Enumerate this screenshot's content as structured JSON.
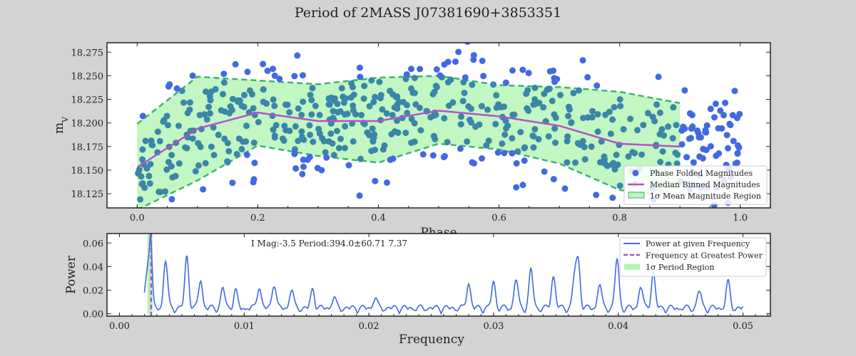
{
  "figure_title": "Period of 2MASS J07381690+3853351",
  "colors": {
    "background": "#d3d3d3",
    "points": "#4169e1",
    "points_overlap": "#3a86a8",
    "median_line": "#b452c8",
    "band_fill": "#90ee90",
    "band_edge": "#3cb371",
    "power_line": "#4169e1",
    "peak_line": "#b452c8"
  },
  "chart_data": [
    {
      "type": "scatter",
      "title": "Period of 2MASS J07381690+3853351",
      "xlabel": "Phase",
      "ylabel": "m_V",
      "xlim": [
        -0.05,
        1.05
      ],
      "ylim": [
        18.11,
        18.285
      ],
      "xticks": [
        "0.0",
        "0.2",
        "0.4",
        "0.6",
        "0.8",
        "1.0"
      ],
      "yticks": [
        "18.125",
        "18.150",
        "18.175",
        "18.200",
        "18.225",
        "18.250",
        "18.275"
      ],
      "legend_position": "lower-right",
      "series": [
        {
          "name": "Phase Folded Magnitudes",
          "kind": "scatter",
          "n_points": 560,
          "x_range": [
            0.0,
            1.0
          ],
          "y_range": [
            18.11,
            18.285
          ],
          "centered_on_median": true
        },
        {
          "name": "Median Binned Magnitudes",
          "kind": "line",
          "x": [
            0.0,
            0.1,
            0.2,
            0.3,
            0.4,
            0.5,
            0.6,
            0.7,
            0.8,
            0.9
          ],
          "y": [
            18.153,
            18.194,
            18.211,
            18.202,
            18.202,
            18.213,
            18.207,
            18.197,
            18.178,
            18.175
          ]
        },
        {
          "name": "1σ Mean Magnitude Region",
          "kind": "band",
          "x": [
            0.0,
            0.1,
            0.2,
            0.3,
            0.4,
            0.5,
            0.6,
            0.7,
            0.8,
            0.9
          ],
          "upper": [
            18.199,
            18.249,
            18.245,
            18.241,
            18.248,
            18.25,
            18.24,
            18.238,
            18.233,
            18.221
          ],
          "lower": [
            18.108,
            18.139,
            18.176,
            18.165,
            18.158,
            18.178,
            18.172,
            18.157,
            18.129,
            18.121
          ]
        }
      ]
    },
    {
      "type": "line",
      "xlabel": "Frequency",
      "ylabel": "Power",
      "xlim": [
        -0.001,
        0.0522
      ],
      "ylim": [
        -0.002,
        0.068
      ],
      "xticks": [
        "0.00",
        "0.01",
        "0.02",
        "0.03",
        "0.04",
        "0.05"
      ],
      "yticks": [
        "0.00",
        "0.02",
        "0.04",
        "0.06"
      ],
      "annotation": "I Mag:-3.5 Period:394.0±60.71 7.37",
      "legend_position": "upper-right",
      "peak_frequency": 0.00254,
      "period_region": [
        0.00225,
        0.00265
      ],
      "series": [
        {
          "name": "Power at given Frequency",
          "kind": "line",
          "x_range": [
            0.002,
            0.05
          ],
          "peaks": [
            {
              "f": 0.00248,
              "p": 0.064
            },
            {
              "f": 0.0037,
              "p": 0.041
            },
            {
              "f": 0.0054,
              "p": 0.044
            },
            {
              "f": 0.0065,
              "p": 0.024
            },
            {
              "f": 0.0083,
              "p": 0.017
            },
            {
              "f": 0.0093,
              "p": 0.015
            },
            {
              "f": 0.0112,
              "p": 0.019
            },
            {
              "f": 0.0124,
              "p": 0.022
            },
            {
              "f": 0.0138,
              "p": 0.016
            },
            {
              "f": 0.0155,
              "p": 0.016
            },
            {
              "f": 0.0172,
              "p": 0.009
            },
            {
              "f": 0.0205,
              "p": 0.009
            },
            {
              "f": 0.028,
              "p": 0.022
            },
            {
              "f": 0.03,
              "p": 0.022
            },
            {
              "f": 0.0318,
              "p": 0.025
            },
            {
              "f": 0.033,
              "p": 0.033
            },
            {
              "f": 0.0348,
              "p": 0.028
            },
            {
              "f": 0.0365,
              "p": 0.027
            },
            {
              "f": 0.0368,
              "p": 0.037
            },
            {
              "f": 0.0385,
              "p": 0.021
            },
            {
              "f": 0.0399,
              "p": 0.042
            },
            {
              "f": 0.0418,
              "p": 0.019
            },
            {
              "f": 0.0428,
              "p": 0.03
            },
            {
              "f": 0.0465,
              "p": 0.015
            },
            {
              "f": 0.0488,
              "p": 0.022
            }
          ]
        },
        {
          "name": "Frequency at Greatest Power",
          "kind": "vline",
          "x": 0.00254
        },
        {
          "name": "1σ Period Region",
          "kind": "band",
          "x": [
            0.00225,
            0.00265
          ]
        }
      ]
    }
  ]
}
